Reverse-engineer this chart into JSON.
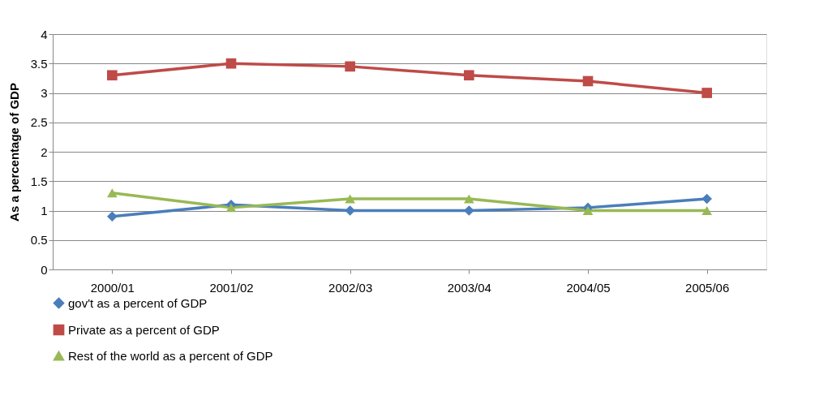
{
  "chart_data": {
    "type": "line",
    "ylabel": "As a percentage of GDP",
    "categories": [
      "2000/01",
      "2001/02",
      "2002/03",
      "2003/04",
      "2004/05",
      "2005/06"
    ],
    "series": [
      {
        "name": "gov't as a percent of GDP",
        "color": "#4a7ebb",
        "marker": "diamond",
        "values": [
          0.9,
          1.1,
          1.0,
          1.0,
          1.05,
          1.2
        ]
      },
      {
        "name": "Private as a percent of GDP",
        "color": "#be4b48",
        "marker": "square",
        "values": [
          3.3,
          3.5,
          3.45,
          3.3,
          3.2,
          3.0
        ]
      },
      {
        "name": "Rest of the world as a percent of GDP",
        "color": "#98b954",
        "marker": "triangle",
        "values": [
          1.3,
          1.05,
          1.2,
          1.2,
          1.0,
          1.0
        ]
      }
    ],
    "ylim": [
      0,
      4
    ],
    "yticks": [
      0,
      0.5,
      1,
      1.5,
      2,
      2.5,
      3,
      3.5,
      4
    ],
    "grid": "y",
    "legend": "bottom",
    "line_style": "solid"
  }
}
